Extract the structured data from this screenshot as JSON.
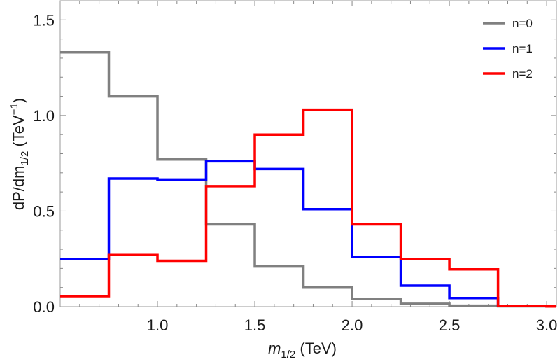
{
  "chart_data": {
    "type": "line",
    "style": "step-histogram",
    "title": "",
    "xlabel": {
      "main": "m",
      "sub": "1/2",
      "unit": " (TeV)"
    },
    "ylabel": {
      "main": "dP/dm",
      "sub": "1/2",
      "unit_open": " (TeV",
      "sup": "−1",
      "unit_close": ")"
    },
    "xlim": [
      0.5,
      3.05
    ],
    "ylim": [
      0.0,
      1.6
    ],
    "xticks": [
      {
        "value": 1.0,
        "label": "1.0"
      },
      {
        "value": 1.5,
        "label": "1.5"
      },
      {
        "value": 2.0,
        "label": "2.0"
      },
      {
        "value": 2.5,
        "label": "2.5"
      },
      {
        "value": 3.0,
        "label": "3.0"
      }
    ],
    "yticks": [
      {
        "value": 0.0,
        "label": "0.0"
      },
      {
        "value": 0.5,
        "label": "0.5"
      },
      {
        "value": 1.0,
        "label": "1.0"
      },
      {
        "value": 1.5,
        "label": "1.5"
      }
    ],
    "bin_edges": [
      0.5,
      0.75,
      1.0,
      1.25,
      1.5,
      1.75,
      2.0,
      2.25,
      2.5,
      2.75,
      3.0,
      3.05
    ],
    "legend_position": "top-right",
    "series": [
      {
        "name": "n=0",
        "color": "#808080",
        "values": [
          1.33,
          1.1,
          0.77,
          0.43,
          0.21,
          0.1,
          0.04,
          0.015,
          0.005,
          0.002,
          0.001
        ]
      },
      {
        "name": "n=1",
        "color": "#0000ff",
        "values": [
          0.25,
          0.67,
          0.665,
          0.76,
          0.72,
          0.51,
          0.26,
          0.11,
          0.045,
          0.003,
          0.001
        ]
      },
      {
        "name": "n=2",
        "color": "#ff0000",
        "values": [
          0.055,
          0.27,
          0.24,
          0.63,
          0.9,
          1.03,
          0.43,
          0.25,
          0.195,
          0.004,
          0.001
        ]
      }
    ]
  }
}
